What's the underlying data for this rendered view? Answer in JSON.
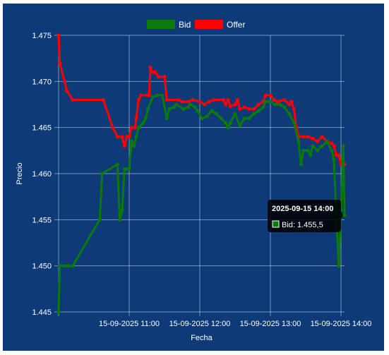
{
  "chart_data": {
    "type": "line",
    "xlabel": "Fecha",
    "ylabel": "Precio",
    "ylim": [
      1.445,
      1.475
    ],
    "y_ticks": [
      "1.445",
      "1.450",
      "1.455",
      "1.460",
      "1.465",
      "1.470",
      "1.475"
    ],
    "x_ticks": [
      {
        "label": "15-09-2025 11:00",
        "minutes": 60
      },
      {
        "label": "15-09-2025 12:00",
        "minutes": 120
      },
      {
        "label": "15-09-2025 13:00",
        "minutes": 180
      },
      {
        "label": "15-09-2025 14:00",
        "minutes": 240
      }
    ],
    "x_note": "minutes = minutes after 15-09-2025 10:00",
    "grid": true,
    "legend": "top-center",
    "series": [
      {
        "name": "Offer",
        "color": "#ff0000",
        "points": [
          [
            0,
            1.475
          ],
          [
            1,
            1.472
          ],
          [
            5,
            1.47
          ],
          [
            7,
            1.469
          ],
          [
            12,
            1.468
          ],
          [
            38,
            1.468
          ],
          [
            46,
            1.465
          ],
          [
            50,
            1.464
          ],
          [
            54,
            1.464
          ],
          [
            56,
            1.463
          ],
          [
            58,
            1.464
          ],
          [
            60,
            1.464
          ],
          [
            62,
            1.465
          ],
          [
            65,
            1.465
          ],
          [
            66,
            1.466
          ],
          [
            68,
            1.468
          ],
          [
            70,
            1.4685
          ],
          [
            76,
            1.4685
          ],
          [
            77,
            1.4685
          ],
          [
            78,
            1.4715
          ],
          [
            80,
            1.471
          ],
          [
            82,
            1.471
          ],
          [
            85,
            1.4705
          ],
          [
            90,
            1.4705
          ],
          [
            92,
            1.468
          ],
          [
            102,
            1.468
          ],
          [
            105,
            1.4678
          ],
          [
            110,
            1.4678
          ],
          [
            114,
            1.468
          ],
          [
            120,
            1.4678
          ],
          [
            124,
            1.4675
          ],
          [
            128,
            1.4678
          ],
          [
            132,
            1.468
          ],
          [
            140,
            1.468
          ],
          [
            142,
            1.4675
          ],
          [
            144,
            1.468
          ],
          [
            146,
            1.4673
          ],
          [
            150,
            1.4675
          ],
          [
            152,
            1.468
          ],
          [
            154,
            1.467
          ],
          [
            158,
            1.4672
          ],
          [
            162,
            1.467
          ],
          [
            166,
            1.467
          ],
          [
            170,
            1.4675
          ],
          [
            174,
            1.4678
          ],
          [
            176,
            1.4685
          ],
          [
            180,
            1.4685
          ],
          [
            183,
            1.468
          ],
          [
            186,
            1.4678
          ],
          [
            192,
            1.468
          ],
          [
            196,
            1.4675
          ],
          [
            198,
            1.4678
          ],
          [
            200,
            1.467
          ],
          [
            202,
            1.465
          ],
          [
            204,
            1.464
          ],
          [
            208,
            1.464
          ],
          [
            212,
            1.464
          ],
          [
            216,
            1.4638
          ],
          [
            220,
            1.4635
          ],
          [
            224,
            1.464
          ],
          [
            228,
            1.4635
          ],
          [
            232,
            1.4633
          ],
          [
            234,
            1.463
          ],
          [
            236,
            1.462
          ],
          [
            238,
            1.462
          ],
          [
            240,
            1.461
          ],
          [
            243,
            1.461
          ]
        ]
      },
      {
        "name": "Bid",
        "color": "#0a7a0a",
        "points": [
          [
            0,
            1.445
          ],
          [
            1,
            1.45
          ],
          [
            5,
            1.45
          ],
          [
            8,
            1.45
          ],
          [
            12,
            1.45
          ],
          [
            35,
            1.455
          ],
          [
            37,
            1.46
          ],
          [
            50,
            1.461
          ],
          [
            52,
            1.455
          ],
          [
            54,
            1.456
          ],
          [
            56,
            1.4605
          ],
          [
            58,
            1.4605
          ],
          [
            60,
            1.4605
          ],
          [
            62,
            1.4635
          ],
          [
            64,
            1.463
          ],
          [
            66,
            1.464
          ],
          [
            68,
            1.465
          ],
          [
            72,
            1.4655
          ],
          [
            74,
            1.466
          ],
          [
            76,
            1.467
          ],
          [
            80,
            1.4683
          ],
          [
            84,
            1.4685
          ],
          [
            88,
            1.4685
          ],
          [
            92,
            1.466
          ],
          [
            94,
            1.467
          ],
          [
            98,
            1.4672
          ],
          [
            100,
            1.4675
          ],
          [
            106,
            1.467
          ],
          [
            110,
            1.4672
          ],
          [
            112,
            1.4675
          ],
          [
            116,
            1.4672
          ],
          [
            118,
            1.4668
          ],
          [
            122,
            1.466
          ],
          [
            126,
            1.4662
          ],
          [
            130,
            1.4668
          ],
          [
            134,
            1.4665
          ],
          [
            138,
            1.466
          ],
          [
            142,
            1.4655
          ],
          [
            144,
            1.465
          ],
          [
            146,
            1.4655
          ],
          [
            150,
            1.4665
          ],
          [
            154,
            1.4652
          ],
          [
            158,
            1.466
          ],
          [
            162,
            1.466
          ],
          [
            166,
            1.4665
          ],
          [
            170,
            1.4668
          ],
          [
            174,
            1.4672
          ],
          [
            176,
            1.4678
          ],
          [
            180,
            1.4678
          ],
          [
            184,
            1.4675
          ],
          [
            188,
            1.4675
          ],
          [
            192,
            1.4672
          ],
          [
            196,
            1.4665
          ],
          [
            200,
            1.4655
          ],
          [
            204,
            1.4635
          ],
          [
            206,
            1.461
          ],
          [
            208,
            1.4625
          ],
          [
            212,
            1.4625
          ],
          [
            214,
            1.462
          ],
          [
            216,
            1.463
          ],
          [
            220,
            1.4625
          ],
          [
            224,
            1.463
          ],
          [
            228,
            1.4635
          ],
          [
            232,
            1.4625
          ],
          [
            234,
            1.4615
          ],
          [
            236,
            1.4555
          ],
          [
            238,
            1.45
          ],
          [
            240,
            1.456
          ],
          [
            242,
            1.463
          ],
          [
            243,
            1.4555
          ]
        ]
      }
    ],
    "tooltip": {
      "title": "2025-09-15 14:00",
      "label": "Bid: 1.455,5",
      "minutes": 243,
      "value": 1.4555
    }
  }
}
